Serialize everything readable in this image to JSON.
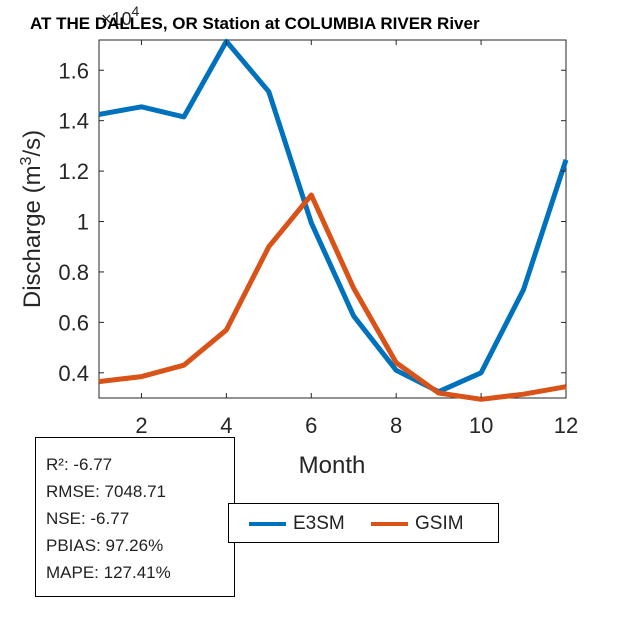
{
  "title": "AT THE DALLES, OR  Station at  COLUMBIA RIVER  River",
  "chart_data": {
    "type": "line",
    "title": "AT THE DALLES, OR  Station at  COLUMBIA RIVER  River",
    "xlabel": "Month",
    "ylabel": "Discharge (m3/s)",
    "y_multiplier_label": "×10^4",
    "x": [
      1,
      2,
      3,
      4,
      5,
      6,
      7,
      8,
      9,
      10,
      11,
      12
    ],
    "xlim": [
      1,
      12
    ],
    "ylim": [
      0.3,
      1.72
    ],
    "x_ticks": [
      2,
      4,
      6,
      8,
      10,
      12
    ],
    "y_ticks": [
      0.4,
      0.6,
      0.8,
      1,
      1.2,
      1.4,
      1.6
    ],
    "y_tick_labels": [
      "0.4",
      "0.6",
      "0.8",
      "1",
      "1.2",
      "1.4",
      "1.6"
    ],
    "grid": false,
    "legend_position": "bottom",
    "series": [
      {
        "name": "E3SM",
        "color": "#0072BD",
        "values": [
          1.425,
          1.455,
          1.415,
          1.715,
          1.515,
          0.995,
          0.625,
          0.41,
          0.325,
          0.4,
          0.73,
          1.245
        ]
      },
      {
        "name": "GSIM",
        "color": "#D95319",
        "values": [
          0.365,
          0.385,
          0.43,
          0.57,
          0.9,
          1.105,
          0.735,
          0.44,
          0.32,
          0.295,
          0.315,
          0.345
        ]
      }
    ]
  },
  "stats": {
    "r2": "R²: -6.77",
    "rmse": "RMSE: 7048.71",
    "nse": "NSE: -6.77",
    "pbias": "PBIAS: 97.26%",
    "mape": "MAPE: 127.41%"
  },
  "legend": {
    "e3sm": "E3SM",
    "gsim": "GSIM"
  }
}
